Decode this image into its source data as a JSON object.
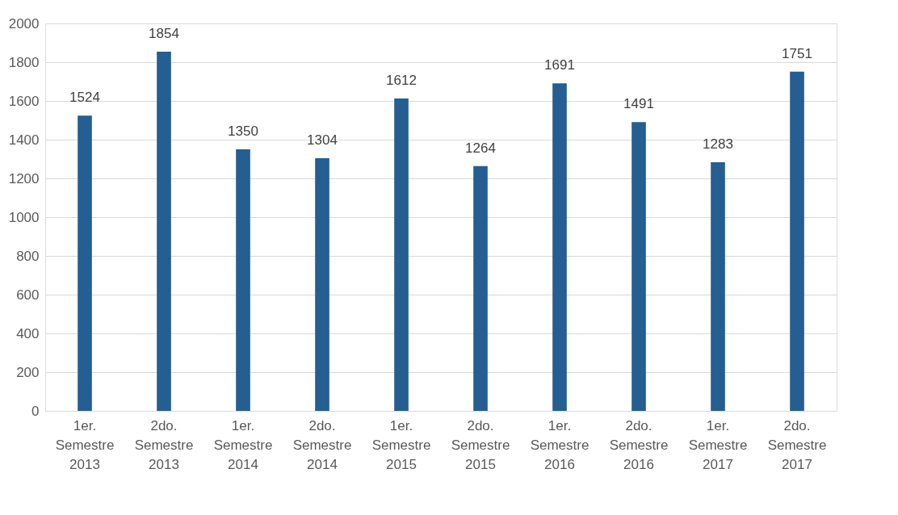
{
  "chart_data": {
    "type": "bar",
    "categories": [
      "1er. Semestre 2013",
      "2do. Semestre 2013",
      "1er. Semestre 2014",
      "2do. Semestre 2014",
      "1er. Semestre 2015",
      "2do. Semestre 2015",
      "1er. Semestre 2016",
      "2do. Semestre 2016",
      "1er. Semestre 2017",
      "2do. Semestre 2017"
    ],
    "values": [
      1524,
      1854,
      1350,
      1304,
      1612,
      1264,
      1691,
      1491,
      1283,
      1751
    ],
    "color": "#255e91",
    "ylim": [
      0,
      2000
    ],
    "yticks": [
      0,
      200,
      400,
      600,
      800,
      1000,
      1200,
      1400,
      1600,
      1800,
      2000
    ],
    "grid": "y",
    "data_labels": true
  }
}
